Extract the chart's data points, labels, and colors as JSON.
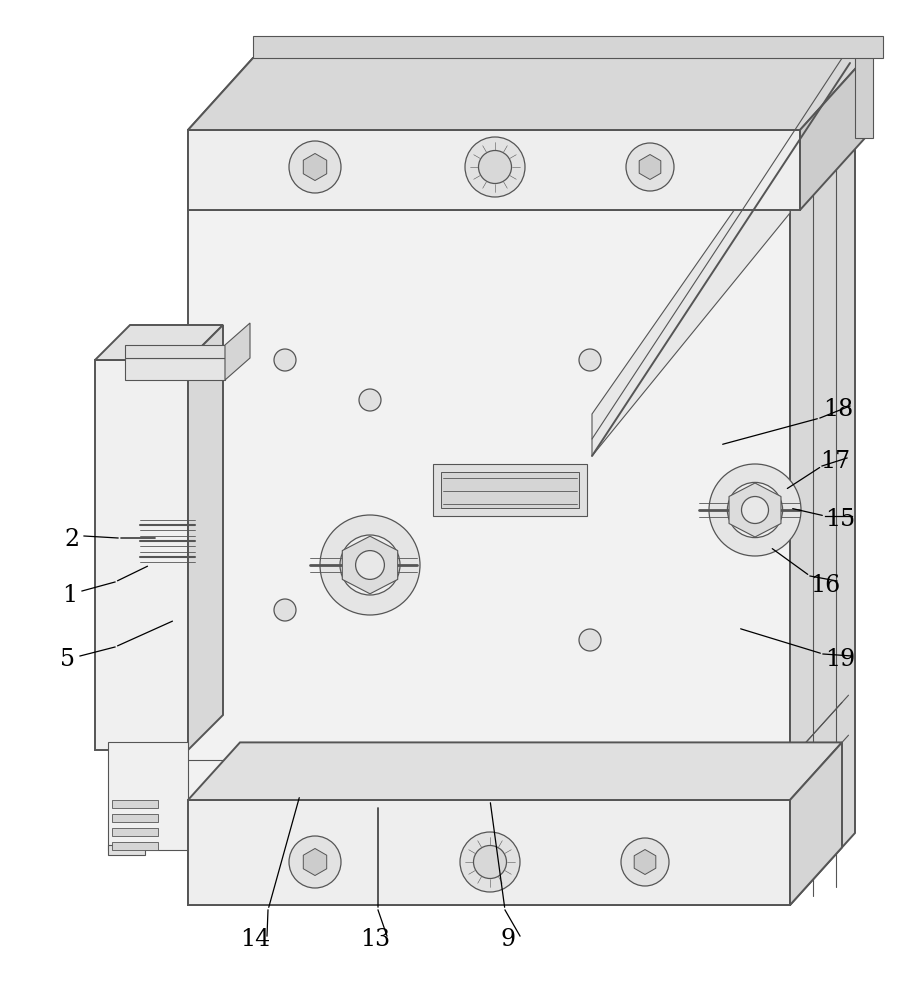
{
  "background_color": "#ffffff",
  "line_color": "#555555",
  "label_color": "#000000",
  "label_fontsize": 17,
  "fig_width": 9.19,
  "fig_height": 10.0,
  "face_fill": "#f2f2f2",
  "top_fill": "#e0e0e0",
  "right_fill": "#d8d8d8",
  "dark_fill": "#c8c8c8",
  "light_fill": "#eeeeee"
}
